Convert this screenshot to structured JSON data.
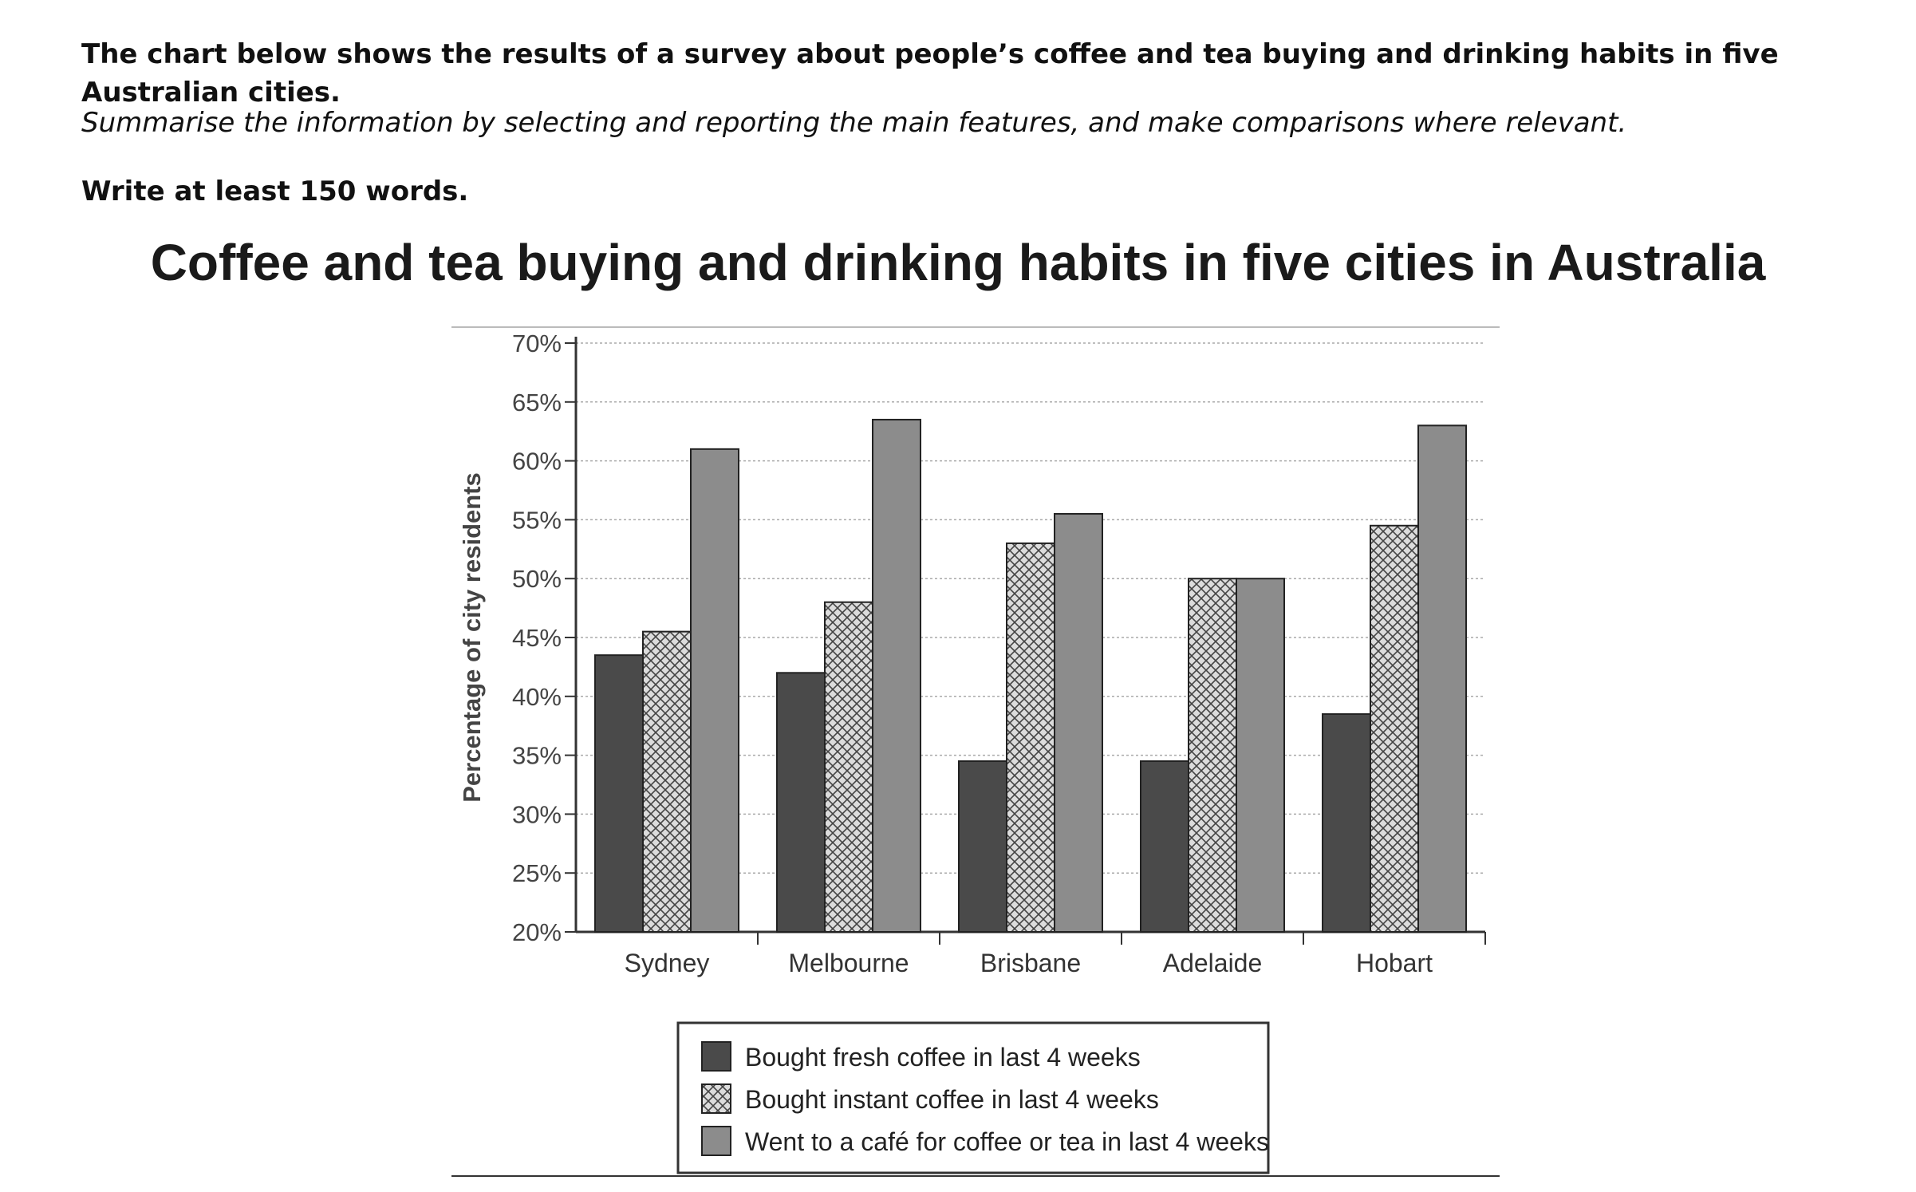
{
  "task": {
    "prompt": "The chart below shows the results of a survey about people’s coffee and tea buying and drinking habits in five Australian cities.",
    "instruction": "Summarise the information by selecting and reporting the main features, and make comparisons where relevant.",
    "word_count": "Write at least 150 words."
  },
  "chart_data": {
    "type": "bar",
    "title": "Coffee and tea buying and drinking habits in five cities in Australia",
    "xlabel": "",
    "ylabel": "Percentage of city residents",
    "ylim": [
      20,
      70
    ],
    "yticks": [
      "20%",
      "25%",
      "30%",
      "35%",
      "40%",
      "45%",
      "50%",
      "55%",
      "60%",
      "65%",
      "70%"
    ],
    "grid": true,
    "legend_position": "bottom",
    "categories": [
      "Sydney",
      "Melbourne",
      "Brisbane",
      "Adelaide",
      "Hobart"
    ],
    "series": [
      {
        "name": "Bought fresh coffee in last 4 weeks",
        "values": [
          43.5,
          42,
          34.5,
          34.5,
          38.5
        ],
        "color": "#4a4a4a",
        "pattern": "solid"
      },
      {
        "name": "Bought instant coffee in last 4 weeks",
        "values": [
          45.5,
          48,
          53,
          50,
          54.5
        ],
        "color": "#d9d9d9",
        "pattern": "crosshatch"
      },
      {
        "name": "Went to a café for coffee or tea in last 4 weeks",
        "values": [
          61,
          63.5,
          55.5,
          50,
          63
        ],
        "color": "#8c8c8c",
        "pattern": "solid"
      }
    ]
  }
}
